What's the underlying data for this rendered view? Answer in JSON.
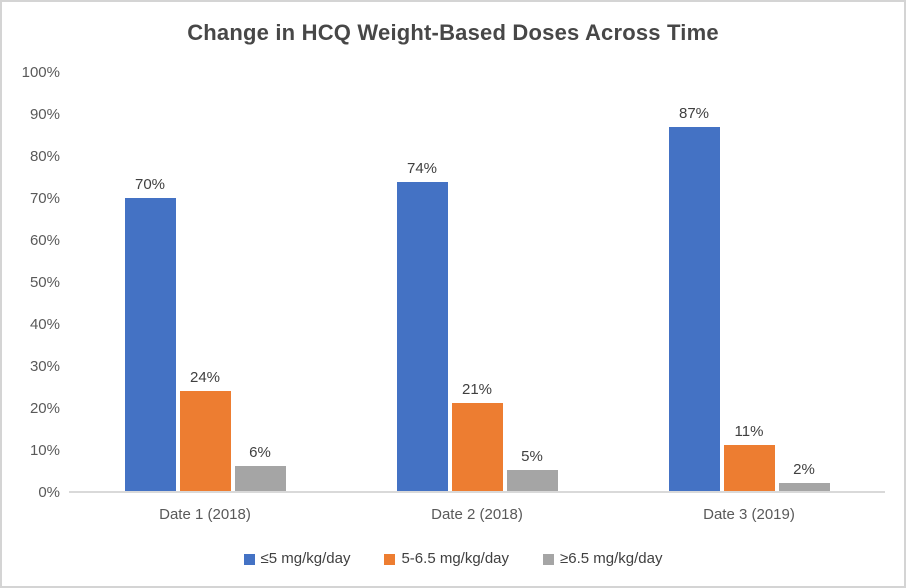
{
  "page": {
    "background_color": "#ffffff",
    "frame_color": "#d4d4d4"
  },
  "chart_data": {
    "type": "bar",
    "title": "Change in HCQ Weight-Based Doses Across Time",
    "xlabel": "",
    "ylabel": "",
    "categories": [
      "Date 1 (2018)",
      "Date 2 (2018)",
      "Date 3 (2019)"
    ],
    "series": [
      {
        "name": "≤5 mg/kg/day",
        "color": "#4472C4",
        "values": [
          70,
          74,
          87
        ],
        "data_labels": [
          "70%",
          "74%",
          "87%"
        ]
      },
      {
        "name": "5-6.5 mg/kg/day",
        "color": "#ED7D31",
        "values": [
          24,
          21,
          11
        ],
        "data_labels": [
          "24%",
          "21%",
          "11%"
        ]
      },
      {
        "name": "≥6.5 mg/kg/day",
        "color": "#A5A5A5",
        "values": [
          6,
          5,
          2
        ],
        "data_labels": [
          "6%",
          "5%",
          "2%"
        ]
      }
    ],
    "ylim": [
      0,
      100
    ],
    "ytick_step": 10,
    "yticks": [
      "0%",
      "10%",
      "20%",
      "30%",
      "40%",
      "50%",
      "60%",
      "70%",
      "80%",
      "90%",
      "100%"
    ],
    "grid": false,
    "legend_position": "bottom",
    "axis_line_color": "#d9d9d9",
    "tick_label_color": "#595959",
    "data_label_color": "#404040",
    "title_color": "#474747"
  }
}
